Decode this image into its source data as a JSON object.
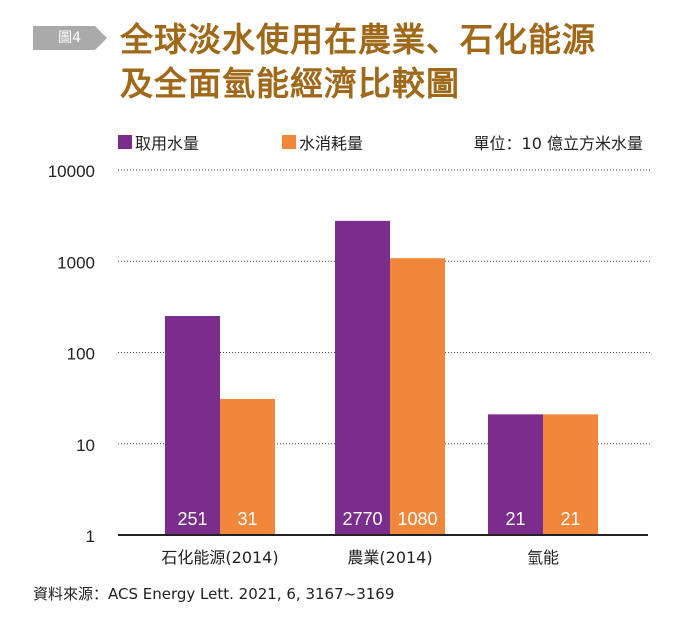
{
  "figure_tag": "圖4",
  "title_line1": "全球淡水使用在農業、石化能源",
  "title_line2": "及全面氫能經濟比較圖",
  "unit_label": "單位：10 億立方米水量",
  "source": "資料來源：ACS Energy Lett. 2021, 6, 3167~3169",
  "chart_data": {
    "type": "bar",
    "title": "全球淡水使用在農業、石化能源及全面氫能經濟比較圖",
    "ylabel": "單位：10 億立方米水量",
    "yscale": "log",
    "ylim": [
      1,
      10000
    ],
    "yticks": [
      "1",
      "10",
      "100",
      "1000",
      "10000"
    ],
    "ytick_values": [
      1,
      10,
      100,
      1000,
      10000
    ],
    "categories": [
      "石化能源(2014)",
      "農業(2014)",
      "氫能"
    ],
    "series": [
      {
        "name": "取用水量",
        "color": "#7b2d8e",
        "values": [
          251,
          2770,
          21
        ],
        "labels": [
          "251",
          "2770",
          "21"
        ]
      },
      {
        "name": "水消耗量",
        "color": "#f0873a",
        "values": [
          31,
          1080,
          21
        ],
        "labels": [
          "31",
          "1080",
          "21"
        ]
      }
    ],
    "grid": true,
    "legend": "top-left"
  }
}
